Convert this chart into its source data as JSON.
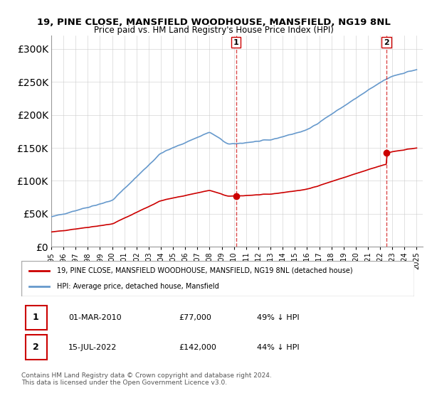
{
  "title_line1": "19, PINE CLOSE, MANSFIELD WOODHOUSE, MANSFIELD, NG19 8NL",
  "title_line2": "Price paid vs. HM Land Registry's House Price Index (HPI)",
  "ylim": [
    0,
    320000
  ],
  "yticks": [
    0,
    50000,
    100000,
    150000,
    200000,
    250000,
    300000
  ],
  "ytick_labels": [
    "£0",
    "£50K",
    "£100K",
    "£150K",
    "£200K",
    "£250K",
    "£300K"
  ],
  "hpi_color": "#6699cc",
  "price_color": "#cc0000",
  "marker1_date_x": 2010.17,
  "marker1_price": 77000,
  "marker2_date_x": 2022.54,
  "marker2_price": 142000,
  "legend_line1": "19, PINE CLOSE, MANSFIELD WOODHOUSE, MANSFIELD, NG19 8NL (detached house)",
  "legend_line2": "HPI: Average price, detached house, Mansfield",
  "table_row1": [
    "1",
    "01-MAR-2010",
    "£77,000",
    "49% ↓ HPI"
  ],
  "table_row2": [
    "2",
    "15-JUL-2022",
    "£142,000",
    "44% ↓ HPI"
  ],
  "footnote": "Contains HM Land Registry data © Crown copyright and database right 2024.\nThis data is licensed under the Open Government Licence v3.0.",
  "bg_color": "#ffffff",
  "grid_color": "#cccccc",
  "xmin": 1995,
  "xmax": 2025.5
}
